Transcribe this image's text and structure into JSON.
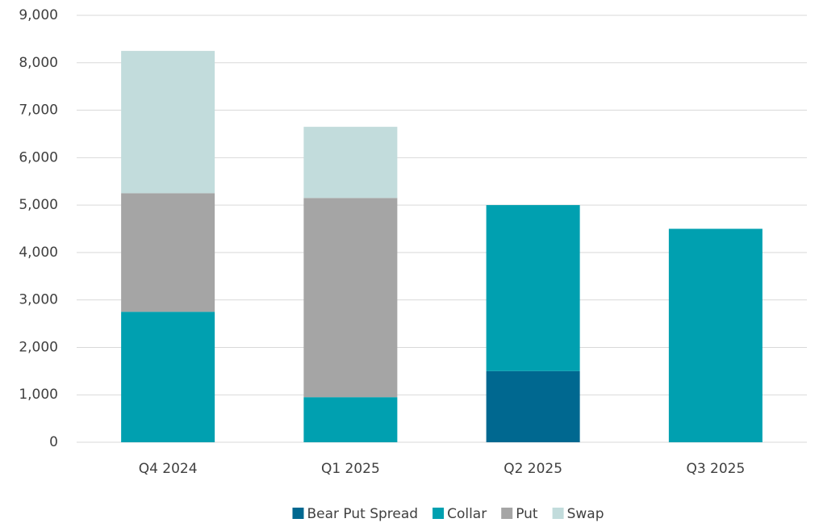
{
  "chart_data": {
    "type": "stacked-bar",
    "categories": [
      "Q4 2024",
      "Q1 2025",
      "Q2 2025",
      "Q3 2025"
    ],
    "series": [
      {
        "name": "Bear Put Spread",
        "color": "#006890",
        "values": [
          null,
          null,
          1500,
          null
        ]
      },
      {
        "name": "Collar",
        "color": "#00a0b0",
        "values": [
          2750,
          950,
          3500,
          4500
        ]
      },
      {
        "name": "Put",
        "color": "#a5a5a5",
        "values": [
          2500,
          4200,
          null,
          null
        ]
      },
      {
        "name": "Swap",
        "color": "#c2dcdc",
        "values": [
          3000,
          1500,
          null,
          null
        ]
      }
    ],
    "ylim": [
      0,
      9000
    ],
    "yticks": [
      0,
      {
        "value": 1000,
        "label": "1,000"
      },
      {
        "value": 2000,
        "label": "2,000"
      },
      {
        "value": 3000,
        "label": "3,000"
      },
      {
        "value": 4000,
        "label": "4,000"
      },
      {
        "value": 5000,
        "label": "5,000"
      },
      {
        "value": 6000,
        "label": "6,000"
      },
      {
        "value": 7000,
        "label": "7,000"
      },
      {
        "value": 8000,
        "label": "8,000"
      },
      {
        "value": 9000,
        "label": "9,000"
      }
    ],
    "grid": true,
    "legend": "bottom"
  }
}
